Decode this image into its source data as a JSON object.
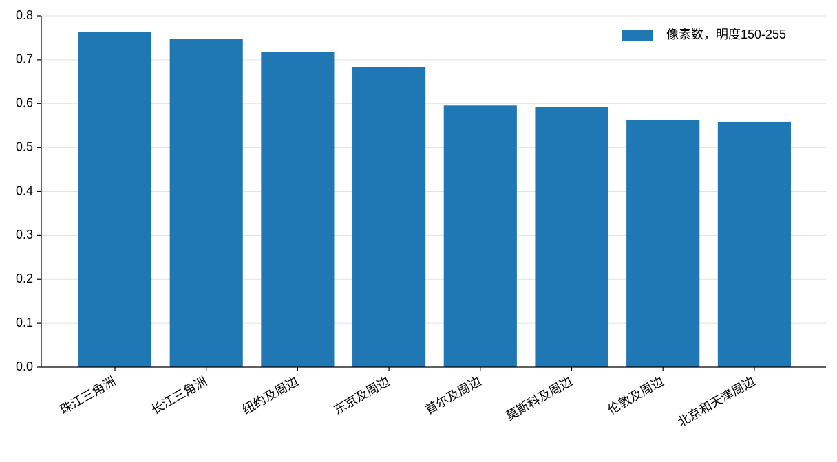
{
  "chart_data": {
    "type": "bar",
    "categories": [
      "珠江三角洲",
      "长江三角洲",
      "纽约及周边",
      "东京及周边",
      "首尔及周边",
      "莫斯科及周边",
      "伦敦及周边",
      "北京和天津周边"
    ],
    "series": [
      {
        "name": "像素数，明度150-255",
        "color": "#1f77b4",
        "values": [
          0.764,
          0.748,
          0.717,
          0.684,
          0.596,
          0.592,
          0.563,
          0.559
        ]
      }
    ],
    "ylim": [
      0,
      0.8
    ],
    "yticks": [
      {
        "value": 0,
        "label": "0.0"
      },
      0.1,
      0.2,
      0.3,
      0.4,
      0.5,
      0.6,
      0.7,
      0.8
    ],
    "grid": true,
    "legend": "upper-right"
  }
}
